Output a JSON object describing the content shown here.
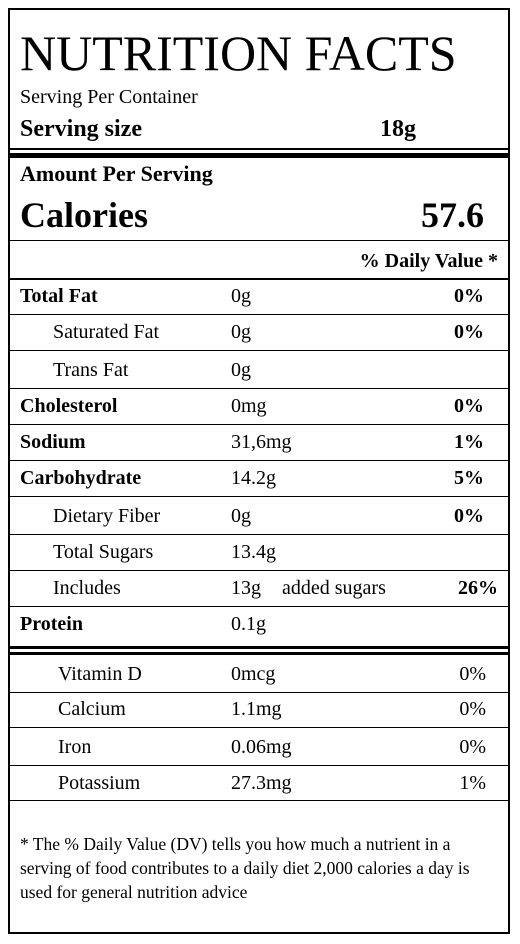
{
  "header": {
    "title": "NUTRITION FACTS",
    "servings": "Serving Per Container",
    "serving_size_label": "Serving size",
    "serving_size": "18g"
  },
  "calories": {
    "heading": "Amount Per Serving",
    "label": "Calories",
    "value": "57.6"
  },
  "daily_value_heading": "% Daily Value *",
  "nutrients": [
    {
      "name": "Total Fat",
      "amount": "0g",
      "daily_value": "0%"
    },
    {
      "name": "Saturated Fat",
      "amount": "0g",
      "daily_value": "0%"
    },
    {
      "name": "Trans Fat",
      "amount": "0g"
    },
    {
      "name": "Cholesterol",
      "amount": "0mg",
      "daily_value": "0%"
    },
    {
      "name": "Sodium",
      "amount": "31,6mg",
      "daily_value": "1%"
    },
    {
      "name": "Carbohydrate",
      "amount": "14.2g",
      "daily_value": "5%"
    },
    {
      "name": "Dietary Fiber",
      "amount": "0g",
      "daily_value": "0%"
    },
    {
      "name": "Total Sugars",
      "amount": "13.4g"
    },
    {
      "name": "Includes",
      "amount": "13g",
      "note": "added sugars",
      "daily_value": "26%"
    },
    {
      "name": "Protein",
      "amount": "0.1g"
    }
  ],
  "vitamins": [
    {
      "name": "Vitamin D",
      "amount": "0mcg",
      "daily_value": "0%"
    },
    {
      "name": "Calcium",
      "amount": "1.1mg",
      "daily_value": "0%"
    },
    {
      "name": "Iron",
      "amount": "0.06mg",
      "daily_value": "0%"
    },
    {
      "name": "Potassium",
      "amount": "27.3mg",
      "daily_value": "1%"
    }
  ],
  "footnote": "* The % Daily Value (DV) tells you how much a nutrient in a serving of food contributes to a daily diet 2,000 calories a day is used for general nutrition advice"
}
